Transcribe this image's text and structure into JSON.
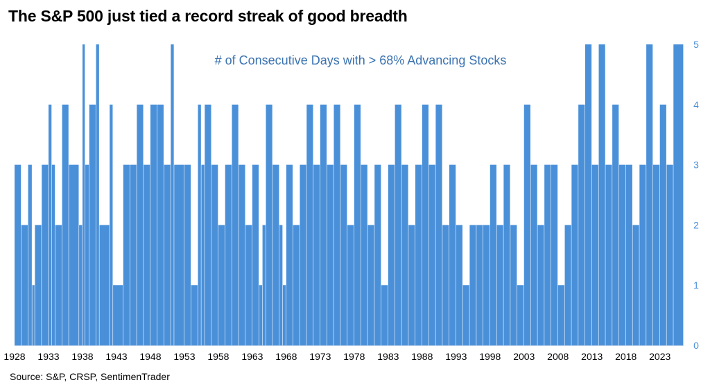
{
  "title": "The S&P 500 just tied a record streak of good breadth",
  "source": "Source: S&P, CRSP, SentimenTrader",
  "colors": {
    "bar": "#4a90d9",
    "text": "#000000",
    "axis": "#4a90d9"
  },
  "chart_data": {
    "type": "bar",
    "series": [
      {
        "name": "# of Consecutive Days with > 68% Advancing Stocks",
        "points": [
          [
            1928.0,
            3
          ],
          [
            1929.0,
            2
          ],
          [
            1930.0,
            3
          ],
          [
            1930.6,
            1
          ],
          [
            1931.0,
            2
          ],
          [
            1932.0,
            3
          ],
          [
            1933.0,
            4
          ],
          [
            1933.5,
            3
          ],
          [
            1934.0,
            2
          ],
          [
            1935.0,
            4
          ],
          [
            1936.0,
            3
          ],
          [
            1937.5,
            2
          ],
          [
            1938.0,
            5
          ],
          [
            1938.4,
            3
          ],
          [
            1939.0,
            4
          ],
          [
            1940.0,
            5
          ],
          [
            1940.5,
            2
          ],
          [
            1942.0,
            4
          ],
          [
            1942.5,
            1
          ],
          [
            1944.0,
            3
          ],
          [
            1945.0,
            3
          ],
          [
            1946.0,
            4
          ],
          [
            1947.0,
            3
          ],
          [
            1948.0,
            4
          ],
          [
            1949.0,
            4
          ],
          [
            1950.0,
            3
          ],
          [
            1951.0,
            5
          ],
          [
            1951.5,
            3
          ],
          [
            1953.0,
            3
          ],
          [
            1954.0,
            1
          ],
          [
            1955.0,
            4
          ],
          [
            1955.5,
            3
          ],
          [
            1956.0,
            4
          ],
          [
            1957.0,
            3
          ],
          [
            1958.0,
            2
          ],
          [
            1959.0,
            3
          ],
          [
            1960.0,
            4
          ],
          [
            1961.0,
            3
          ],
          [
            1962.0,
            2
          ],
          [
            1963.0,
            3
          ],
          [
            1964.0,
            1
          ],
          [
            1964.5,
            2
          ],
          [
            1965.0,
            4
          ],
          [
            1966.0,
            3
          ],
          [
            1967.0,
            2
          ],
          [
            1967.5,
            1
          ],
          [
            1968.0,
            3
          ],
          [
            1969.0,
            2
          ],
          [
            1970.0,
            3
          ],
          [
            1971.0,
            4
          ],
          [
            1972.0,
            3
          ],
          [
            1973.0,
            4
          ],
          [
            1974.0,
            3
          ],
          [
            1975.0,
            4
          ],
          [
            1976.0,
            3
          ],
          [
            1977.0,
            2
          ],
          [
            1978.0,
            4
          ],
          [
            1979.0,
            3
          ],
          [
            1980.0,
            2
          ],
          [
            1981.0,
            3
          ],
          [
            1982.0,
            1
          ],
          [
            1983.0,
            3
          ],
          [
            1984.0,
            4
          ],
          [
            1985.0,
            3
          ],
          [
            1986.0,
            2
          ],
          [
            1987.0,
            3
          ],
          [
            1988.0,
            4
          ],
          [
            1989.0,
            3
          ],
          [
            1990.0,
            4
          ],
          [
            1991.0,
            2
          ],
          [
            1992.0,
            3
          ],
          [
            1993.0,
            2
          ],
          [
            1994.0,
            1
          ],
          [
            1995.0,
            2
          ],
          [
            1996.0,
            2
          ],
          [
            1997.0,
            2
          ],
          [
            1998.0,
            3
          ],
          [
            1999.0,
            2
          ],
          [
            2000.0,
            3
          ],
          [
            2001.0,
            2
          ],
          [
            2002.0,
            1
          ],
          [
            2003.0,
            4
          ],
          [
            2004.0,
            3
          ],
          [
            2005.0,
            2
          ],
          [
            2006.0,
            3
          ],
          [
            2007.0,
            3
          ],
          [
            2008.0,
            1
          ],
          [
            2009.0,
            2
          ],
          [
            2010.0,
            3
          ],
          [
            2011.0,
            4
          ],
          [
            2012.0,
            5
          ],
          [
            2013.0,
            3
          ],
          [
            2014.0,
            5
          ],
          [
            2015.0,
            3
          ],
          [
            2016.0,
            4
          ],
          [
            2017.0,
            3
          ],
          [
            2018.0,
            3
          ],
          [
            2019.0,
            2
          ],
          [
            2020.0,
            3
          ],
          [
            2021.0,
            5
          ],
          [
            2022.0,
            3
          ],
          [
            2023.0,
            4
          ],
          [
            2024.0,
            3
          ],
          [
            2025.0,
            5
          ]
        ]
      }
    ],
    "xlim": [
      1928,
      2026.5
    ],
    "ylim": [
      0,
      5
    ],
    "y_ticks": [
      0,
      1,
      2,
      3,
      4,
      5
    ],
    "x_ticks": [
      1928,
      1933,
      1938,
      1943,
      1948,
      1953,
      1958,
      1963,
      1968,
      1973,
      1978,
      1983,
      1988,
      1993,
      1998,
      2003,
      2008,
      2013,
      2018,
      2023
    ],
    "y_axis_side": "right",
    "grid": false,
    "legend": "none"
  }
}
